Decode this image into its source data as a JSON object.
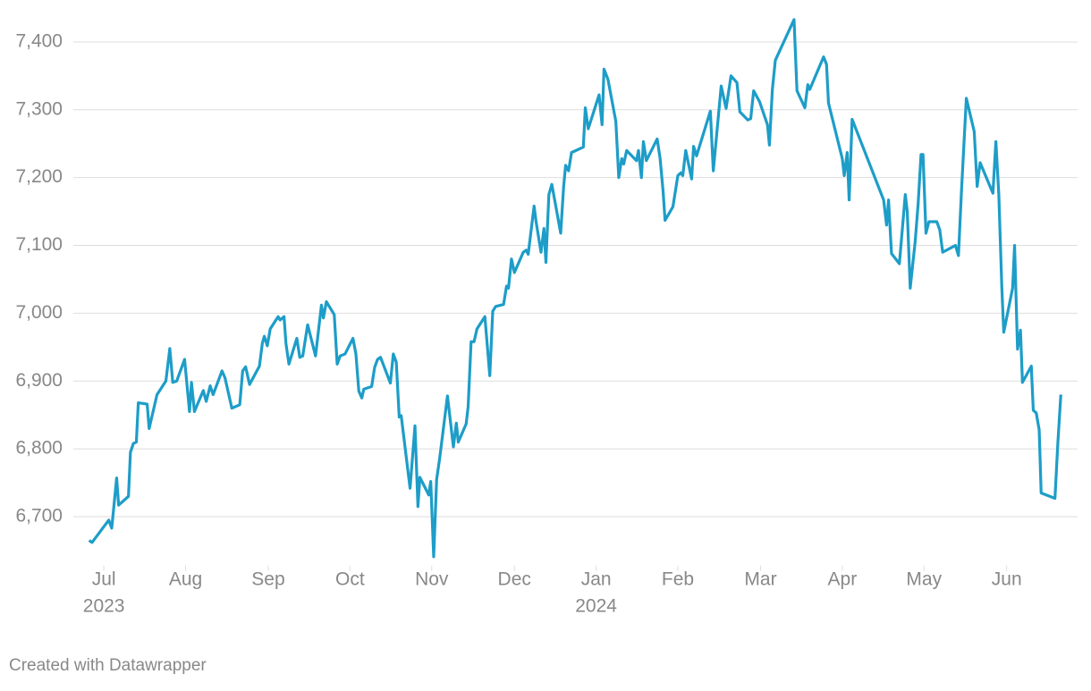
{
  "chart_data": {
    "type": "line",
    "color": "#1d9dc8",
    "grid": true,
    "footer": "Created with Datawrapper",
    "xlim": [
      2023.469,
      2024.489
    ],
    "ylim": [
      6620,
      7440
    ],
    "xticks": [
      {
        "value": 2023.5,
        "label": "Jul",
        "sublabel": "2023"
      },
      {
        "value": 2023.583,
        "label": "Aug"
      },
      {
        "value": 2023.667,
        "label": "Sep"
      },
      {
        "value": 2023.75,
        "label": "Oct"
      },
      {
        "value": 2023.833,
        "label": "Nov"
      },
      {
        "value": 2023.917,
        "label": "Dec"
      },
      {
        "value": 2024,
        "label": "Jan",
        "sublabel": "2024"
      },
      {
        "value": 2024.083,
        "label": "Feb"
      },
      {
        "value": 2024.167,
        "label": "Mar"
      },
      {
        "value": 2024.25,
        "label": "Apr"
      },
      {
        "value": 2024.333,
        "label": "May"
      },
      {
        "value": 2024.417,
        "label": "Jun"
      }
    ],
    "yticks": [
      {
        "value": 6700,
        "label": "6,700"
      },
      {
        "value": 6800,
        "label": "6,800"
      },
      {
        "value": 6900,
        "label": "6,900"
      },
      {
        "value": 7000,
        "label": "7,000"
      },
      {
        "value": 7100,
        "label": "7,100"
      },
      {
        "value": 7200,
        "label": "7,200"
      },
      {
        "value": 7300,
        "label": "7,300"
      },
      {
        "value": 7400,
        "label": "7,400"
      }
    ],
    "x": [
      2023.485,
      2023.488,
      2023.505,
      2023.508,
      2023.513,
      2023.515,
      2023.525,
      2023.527,
      2023.53,
      2023.533,
      2023.535,
      2023.544,
      2023.546,
      2023.554,
      2023.563,
      2023.567,
      2023.57,
      2023.574,
      2023.582,
      2023.587,
      2023.589,
      2023.592,
      2023.601,
      2023.604,
      2023.608,
      2023.611,
      2023.62,
      2023.623,
      2023.63,
      2023.638,
      2023.641,
      2023.644,
      2023.648,
      2023.658,
      2023.661,
      2023.663,
      2023.666,
      2023.669,
      2023.677,
      2023.679,
      2023.683,
      2023.685,
      2023.688,
      2023.696,
      2023.699,
      2023.702,
      2023.707,
      2023.715,
      2023.721,
      2023.723,
      2023.726,
      2023.734,
      2023.737,
      2023.74,
      2023.745,
      2023.753,
      2023.756,
      2023.759,
      2023.762,
      2023.764,
      2023.772,
      2023.775,
      2023.778,
      2023.781,
      2023.791,
      2023.794,
      2023.797,
      2023.8,
      2023.802,
      2023.811,
      2023.816,
      2023.819,
      2023.821,
      2023.83,
      2023.832,
      2023.835,
      2023.838,
      2023.841,
      2023.849,
      2023.855,
      2023.858,
      2023.86,
      2023.868,
      2023.87,
      2023.873,
      2023.876,
      2023.879,
      2023.887,
      2023.892,
      2023.895,
      2023.898,
      2023.906,
      2023.909,
      2023.911,
      2023.914,
      2023.917,
      2023.926,
      2023.929,
      2023.931,
      2023.937,
      2023.939,
      2023.944,
      2023.947,
      2023.949,
      2023.952,
      2023.955,
      2023.964,
      2023.967,
      2023.969,
      2023.972,
      2023.975,
      2023.987,
      2023.989,
      2023.992,
      2024.003,
      2024.006,
      2024.008,
      2024.012,
      2024.02,
      2024.023,
      2024.026,
      2024.028,
      2024.031,
      2024.041,
      2024.043,
      2024.046,
      2024.048,
      2024.051,
      2024.062,
      2024.065,
      2024.068,
      2024.07,
      2024.078,
      2024.083,
      2024.086,
      2024.088,
      2024.091,
      2024.097,
      2024.099,
      2024.102,
      2024.116,
      2024.119,
      2024.127,
      2024.132,
      2024.137,
      2024.143,
      2024.146,
      2024.154,
      2024.157,
      2024.16,
      2024.166,
      2024.174,
      2024.176,
      2024.179,
      2024.182,
      2024.201,
      2024.204,
      2024.212,
      2024.215,
      2024.217,
      2024.231,
      2024.234,
      2024.236,
      2024.25,
      2024.252,
      2024.255,
      2024.257,
      2024.26,
      2024.292,
      2024.295,
      2024.297,
      2024.3,
      2024.308,
      2024.314,
      2024.316,
      2024.319,
      2024.324,
      2024.327,
      2024.33,
      2024.332,
      2024.335,
      2024.338,
      2024.346,
      2024.349,
      2024.352,
      2024.365,
      2024.368,
      2024.371,
      2024.376,
      2024.384,
      2024.387,
      2024.39,
      2024.403,
      2024.406,
      2024.409,
      2024.412,
      2024.414,
      2024.423,
      2024.425,
      2024.428,
      2024.431,
      2024.433,
      2024.442,
      2024.444,
      2024.447,
      2024.45,
      2024.452,
      2024.466,
      2024.469,
      2024.472
    ],
    "values": [
      6665,
      6662,
      6695,
      6683,
      6757,
      6717,
      6730,
      6795,
      6808,
      6810,
      6868,
      6866,
      6830,
      6880,
      6900,
      6948,
      6898,
      6900,
      6932,
      6855,
      6898,
      6855,
      6886,
      6870,
      6893,
      6880,
      6915,
      6905,
      6860,
      6865,
      6915,
      6921,
      6895,
      6922,
      6956,
      6966,
      6952,
      6977,
      6995,
      6990,
      6995,
      6955,
      6925,
      6963,
      6935,
      6937,
      6983,
      6937,
      7012,
      6993,
      7017,
      6998,
      6925,
      6937,
      6940,
      6963,
      6940,
      6885,
      6875,
      6888,
      6892,
      6920,
      6932,
      6935,
      6897,
      6940,
      6928,
      6847,
      6849,
      6742,
      6834,
      6715,
      6758,
      6732,
      6752,
      6641,
      6755,
      6785,
      6878,
      6803,
      6838,
      6810,
      6837,
      6862,
      6958,
      6958,
      6977,
      6995,
      6908,
      7003,
      7010,
      7013,
      7040,
      7037,
      7080,
      7060,
      7090,
      7093,
      7087,
      7158,
      7135,
      7090,
      7125,
      7075,
      7175,
      7190,
      7118,
      7187,
      7218,
      7210,
      7237,
      7245,
      7303,
      7272,
      7322,
      7278,
      7360,
      7345,
      7283,
      7200,
      7228,
      7220,
      7240,
      7225,
      7240,
      7200,
      7253,
      7225,
      7257,
      7228,
      7180,
      7137,
      7157,
      7203,
      7207,
      7203,
      7240,
      7198,
      7246,
      7232,
      7298,
      7210,
      7335,
      7302,
      7350,
      7340,
      7297,
      7285,
      7287,
      7328,
      7312,
      7278,
      7248,
      7330,
      7373,
      7433,
      7328,
      7303,
      7337,
      7330,
      7378,
      7367,
      7310,
      7228,
      7203,
      7237,
      7167,
      7286,
      7167,
      7130,
      7167,
      7088,
      7073,
      7175,
      7150,
      7037,
      7105,
      7160,
      7234,
      7234,
      7118,
      7135,
      7135,
      7123,
      7090,
      7100,
      7085,
      7178,
      7317,
      7268,
      7187,
      7222,
      7177,
      7253,
      7175,
      7040,
      6972,
      7037,
      7100,
      6947,
      6975,
      6898,
      6922,
      6857,
      6853,
      6828,
      6735,
      6727,
      6810,
      6880
    ]
  }
}
